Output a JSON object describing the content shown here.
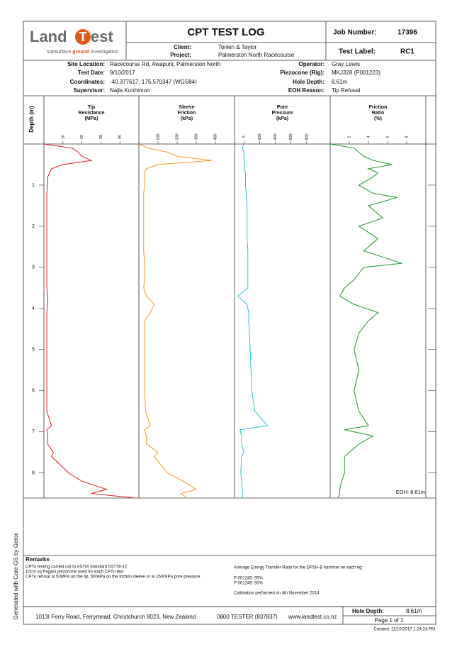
{
  "logo": {
    "name_start": "Land",
    "name_mid": "T",
    "name_end": "est",
    "tagline_start": "subsurface ",
    "tagline_em": "ground",
    "tagline_end": " investigation"
  },
  "header": {
    "title": "CPT TEST LOG",
    "job_number_label": "Job Number:",
    "job_number": "17396",
    "client_label": "Client:",
    "client": "Tonkin & Taylor",
    "project_label": "Project:",
    "project": "Palmerston North Racecourse",
    "test_label_label": "Test Label:",
    "test_label": "RC1"
  },
  "info": {
    "left": [
      {
        "label": "Site Location:",
        "value": "Racecourse Rd, Awapuni, Palmerston North"
      },
      {
        "label": "Test Date:",
        "value": "9/10/2017"
      },
      {
        "label": "Coordinates:",
        "value": "-40.377617, 175.570347 (WGS84)"
      },
      {
        "label": "Supervisor:",
        "value": "Najla Kunhimon"
      }
    ],
    "right": [
      {
        "label": "Operator:",
        "value": "Gray Lewis"
      },
      {
        "label": "Piezocone (Rig):",
        "value": "MKJ328 (P001223)"
      },
      {
        "label": "Hole Depth:",
        "value": "8.61m"
      },
      {
        "label": "EOH Reason:",
        "value": "Tip Refusal"
      }
    ]
  },
  "depth": {
    "label": "Depth (m)",
    "ylim": [
      0,
      8.61
    ],
    "yticks": [
      1,
      2,
      3,
      4,
      5,
      6,
      7,
      8
    ],
    "values": [
      0,
      0.1,
      0.2,
      0.3,
      0.4,
      0.5,
      0.6,
      0.7,
      0.8,
      1.0,
      1.2,
      1.3,
      1.5,
      1.8,
      2.0,
      2.3,
      2.6,
      2.9,
      3.0,
      3.3,
      3.5,
      3.7,
      3.9,
      4.1,
      4.3,
      4.6,
      5.0,
      5.5,
      6.0,
      6.5,
      6.85,
      6.95,
      7.1,
      7.3,
      7.5,
      7.6,
      8.0,
      8.2,
      8.4,
      8.5,
      8.61
    ]
  },
  "chart_data": [
    {
      "type": "line",
      "title": [
        "Tip",
        "Resistance",
        "(MPa)"
      ],
      "color": "#e0201e",
      "xlim": [
        0,
        50
      ],
      "xticks": [
        10,
        20,
        30,
        40
      ],
      "values": [
        0,
        15,
        18,
        20,
        25,
        10,
        4,
        3,
        2,
        2,
        1.5,
        1.5,
        1.5,
        1.5,
        1.5,
        1.5,
        1.5,
        1.5,
        1.5,
        1.5,
        1.5,
        2,
        2,
        1.5,
        1.5,
        1.5,
        1.5,
        1.5,
        1.5,
        1.5,
        4,
        1.5,
        2,
        2,
        5,
        4,
        13,
        20,
        33,
        25,
        48
      ]
    },
    {
      "type": "line",
      "title": [
        "Sleeve",
        "Friction",
        "(kPa)"
      ],
      "color": "#f39a1e",
      "xlim": [
        0,
        500
      ],
      "xticks": [
        100,
        200,
        300,
        400
      ],
      "values": [
        0,
        50,
        150,
        200,
        380,
        100,
        40,
        30,
        30,
        30,
        25,
        25,
        25,
        25,
        25,
        25,
        25,
        30,
        30,
        30,
        25,
        40,
        80,
        60,
        30,
        30,
        30,
        30,
        30,
        35,
        60,
        30,
        40,
        40,
        100,
        80,
        150,
        230,
        300,
        220,
        250
      ]
    },
    {
      "type": "line",
      "title": [
        "Pore",
        "Pressure",
        "(kPa)"
      ],
      "color": "#2cc3d3",
      "xlim": [
        -120,
        1100
      ],
      "xticks": [
        0,
        200,
        400,
        600,
        800
      ],
      "values": [
        0,
        -20,
        0,
        0,
        0,
        10,
        10,
        20,
        20,
        20,
        30,
        30,
        40,
        40,
        40,
        40,
        50,
        50,
        50,
        50,
        50,
        -80,
        40,
        60,
        60,
        70,
        80,
        90,
        100,
        140,
        300,
        -50,
        -30,
        -30,
        0,
        -30,
        -40,
        -30,
        -20,
        -20,
        -20
      ]
    },
    {
      "type": "line",
      "title": [
        "Friction",
        "Ratio",
        "(%)"
      ],
      "color": "#1e9a2a",
      "xlim": [
        0,
        10
      ],
      "xticks": [
        2,
        4,
        6,
        8
      ],
      "values": [
        0,
        2.5,
        3,
        3.5,
        4.5,
        6.5,
        4,
        5,
        4.5,
        3,
        4.5,
        7,
        4,
        5.5,
        3,
        5,
        3.5,
        7.5,
        3.5,
        2.5,
        1.5,
        1,
        2.5,
        5,
        4,
        3,
        2.5,
        3,
        2.5,
        3,
        4,
        1.5,
        4.5,
        3,
        2,
        1.5,
        1.5,
        1.2,
        1,
        1,
        0.8
      ]
    }
  ],
  "eoh_label": "EOH: 8.61m",
  "remarks": {
    "title": "Remarks",
    "left": [
      "CPTu testing carried out to ASTM Standard D5778-12",
      "10cm sq Pagani piezocone used for each CPTu test",
      "CPTu refusal at 50MPa on the tip, 500kPa on the friction sleeve or at 2500kPa pore pressure"
    ],
    "energy_title": "Average Energy Transfer Ratio for the DPSH-B hammer on each rig:",
    "energy": [
      "P 001245: 95%",
      "P 001249: 90%"
    ],
    "calibration": "Calibration performed on 4th November 2014"
  },
  "footer": {
    "address": "1013I Ferry Road, Ferrymead, Christchurch 8023, New Zealand",
    "phone": "0800 TESTER (837837)",
    "website": "www.landtest.co.nz",
    "hole_depth_label": "Hole Depth:",
    "hole_depth": "8.61m",
    "page": "Page 1 of 1",
    "created": "Created: 11/10/2017 1:24:24 PM",
    "generated": "Generated with Core-GS by Geroc"
  }
}
